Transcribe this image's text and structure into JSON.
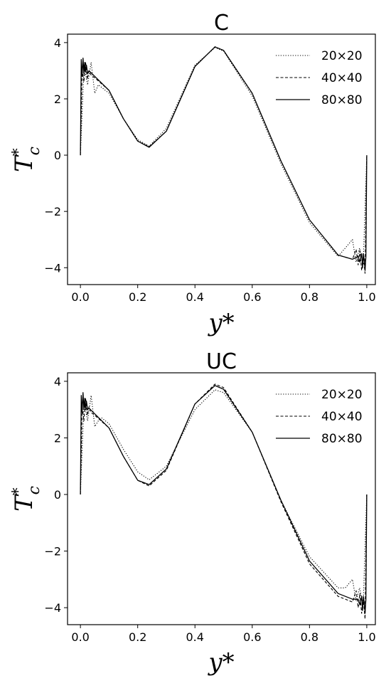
{
  "chart_data": [
    {
      "type": "line",
      "title": "C",
      "xlabel": "y*",
      "ylabel": "Tc*",
      "xlim": [
        -0.045,
        1.03
      ],
      "ylim": [
        -4.6,
        4.3
      ],
      "xticks": [
        0.0,
        0.2,
        0.4,
        0.6,
        0.8,
        1.0
      ],
      "xtick_labels": [
        "0.0",
        "0.2",
        "0.4",
        "0.6",
        "0.8",
        "1.0"
      ],
      "yticks": [
        -4,
        -2,
        0,
        2,
        4
      ],
      "ytick_labels": [
        "−4",
        "−2",
        "0",
        "2",
        "4"
      ],
      "grid": false,
      "legend_position": "top-right",
      "series": [
        {
          "name": "20×20",
          "style": "dotted",
          "color": "#000000",
          "x": [
            0.0,
            0.0125,
            0.025,
            0.0375,
            0.05,
            0.0625,
            0.075,
            0.1,
            0.15,
            0.2,
            0.24,
            0.3,
            0.4,
            0.47,
            0.5,
            0.6,
            0.7,
            0.8,
            0.9,
            0.925,
            0.95,
            0.9625,
            0.975,
            0.9875,
            1.0
          ],
          "y": [
            0.0,
            3.2,
            2.5,
            3.3,
            2.2,
            2.5,
            2.4,
            2.2,
            1.3,
            0.55,
            0.32,
            0.95,
            3.2,
            3.82,
            3.7,
            2.1,
            -0.3,
            -2.4,
            -3.6,
            -3.3,
            -3.0,
            -3.8,
            -3.3,
            -3.9,
            0.0
          ]
        },
        {
          "name": "40×40",
          "style": "dashed",
          "color": "#000000",
          "x": [
            0.0,
            0.006,
            0.012,
            0.018,
            0.024,
            0.03,
            0.037,
            0.05,
            0.1,
            0.15,
            0.2,
            0.24,
            0.3,
            0.4,
            0.47,
            0.5,
            0.6,
            0.7,
            0.8,
            0.9,
            0.95,
            0.963,
            0.97,
            0.976,
            0.982,
            0.988,
            0.994,
            1.0
          ],
          "y": [
            0.0,
            3.0,
            2.6,
            3.3,
            2.7,
            3.0,
            2.85,
            2.75,
            2.3,
            1.3,
            0.5,
            0.3,
            0.85,
            3.15,
            3.85,
            3.72,
            2.2,
            -0.2,
            -2.3,
            -3.55,
            -3.7,
            -3.35,
            -3.9,
            -3.4,
            -4.1,
            -3.6,
            -4.2,
            0.0
          ]
        },
        {
          "name": "80×80",
          "style": "solid",
          "color": "#000000",
          "x": [
            0.0,
            0.003,
            0.006,
            0.009,
            0.012,
            0.015,
            0.018,
            0.021,
            0.025,
            0.03,
            0.05,
            0.1,
            0.15,
            0.2,
            0.24,
            0.3,
            0.4,
            0.47,
            0.5,
            0.6,
            0.7,
            0.8,
            0.9,
            0.95,
            0.97,
            0.976,
            0.982,
            0.985,
            0.988,
            0.991,
            0.994,
            0.997,
            1.0
          ],
          "y": [
            0.0,
            3.4,
            2.8,
            3.45,
            2.9,
            3.3,
            2.95,
            3.2,
            2.9,
            3.0,
            2.8,
            2.3,
            1.3,
            0.5,
            0.28,
            0.85,
            3.15,
            3.85,
            3.72,
            2.2,
            -0.2,
            -2.3,
            -3.55,
            -3.7,
            -3.6,
            -3.8,
            -3.5,
            -4.0,
            -3.5,
            -3.7,
            -4.1,
            -3.6,
            0.0
          ]
        }
      ]
    },
    {
      "type": "line",
      "title": "UC",
      "xlabel": "y*",
      "ylabel": "Tc*",
      "xlim": [
        -0.045,
        1.03
      ],
      "ylim": [
        -4.6,
        4.3
      ],
      "xticks": [
        0.0,
        0.2,
        0.4,
        0.6,
        0.8,
        1.0
      ],
      "xtick_labels": [
        "0.0",
        "0.2",
        "0.4",
        "0.6",
        "0.8",
        "1.0"
      ],
      "yticks": [
        -4,
        -2,
        0,
        2,
        4
      ],
      "ytick_labels": [
        "−4",
        "−2",
        "0",
        "2",
        "4"
      ],
      "grid": false,
      "legend_position": "top-right",
      "series": [
        {
          "name": "20×20",
          "style": "dotted",
          "color": "#000000",
          "x": [
            0.0,
            0.0125,
            0.025,
            0.0375,
            0.05,
            0.0625,
            0.075,
            0.1,
            0.15,
            0.2,
            0.24,
            0.3,
            0.4,
            0.47,
            0.5,
            0.6,
            0.7,
            0.8,
            0.9,
            0.925,
            0.95,
            0.9625,
            0.975,
            0.9875,
            1.0
          ],
          "y": [
            0.0,
            3.3,
            2.6,
            3.5,
            2.4,
            2.6,
            2.7,
            2.5,
            1.6,
            0.8,
            0.52,
            1.0,
            3.0,
            3.7,
            3.6,
            2.2,
            -0.2,
            -2.2,
            -3.3,
            -3.3,
            -3.0,
            -3.75,
            -3.3,
            -3.9,
            0.0
          ]
        },
        {
          "name": "40×40",
          "style": "dashed",
          "color": "#000000",
          "x": [
            0.0,
            0.006,
            0.012,
            0.018,
            0.024,
            0.03,
            0.037,
            0.05,
            0.1,
            0.15,
            0.2,
            0.24,
            0.3,
            0.4,
            0.47,
            0.5,
            0.6,
            0.7,
            0.8,
            0.9,
            0.95,
            0.963,
            0.97,
            0.976,
            0.982,
            0.988,
            0.994,
            1.0
          ],
          "y": [
            0.0,
            3.1,
            2.6,
            3.4,
            2.8,
            3.1,
            2.9,
            2.8,
            2.35,
            1.35,
            0.5,
            0.3,
            0.85,
            3.2,
            3.9,
            3.78,
            2.2,
            -0.25,
            -2.45,
            -3.6,
            -3.8,
            -3.4,
            -4.0,
            -3.5,
            -4.2,
            -3.7,
            -4.4,
            0.0
          ]
        },
        {
          "name": "80×80",
          "style": "solid",
          "color": "#000000",
          "x": [
            0.0,
            0.003,
            0.006,
            0.009,
            0.012,
            0.015,
            0.018,
            0.021,
            0.025,
            0.03,
            0.05,
            0.1,
            0.15,
            0.2,
            0.24,
            0.3,
            0.4,
            0.47,
            0.5,
            0.6,
            0.7,
            0.8,
            0.9,
            0.95,
            0.97,
            0.976,
            0.982,
            0.985,
            0.988,
            0.991,
            0.994,
            0.997,
            1.0
          ],
          "y": [
            0.0,
            3.5,
            2.9,
            3.6,
            3.0,
            3.4,
            3.0,
            3.3,
            3.0,
            3.05,
            2.85,
            2.35,
            1.35,
            0.5,
            0.35,
            0.9,
            3.2,
            3.85,
            3.72,
            2.2,
            -0.2,
            -2.35,
            -3.5,
            -3.7,
            -3.7,
            -3.9,
            -3.6,
            -4.1,
            -3.6,
            -3.8,
            -4.2,
            -3.7,
            0.0
          ]
        }
      ]
    }
  ]
}
